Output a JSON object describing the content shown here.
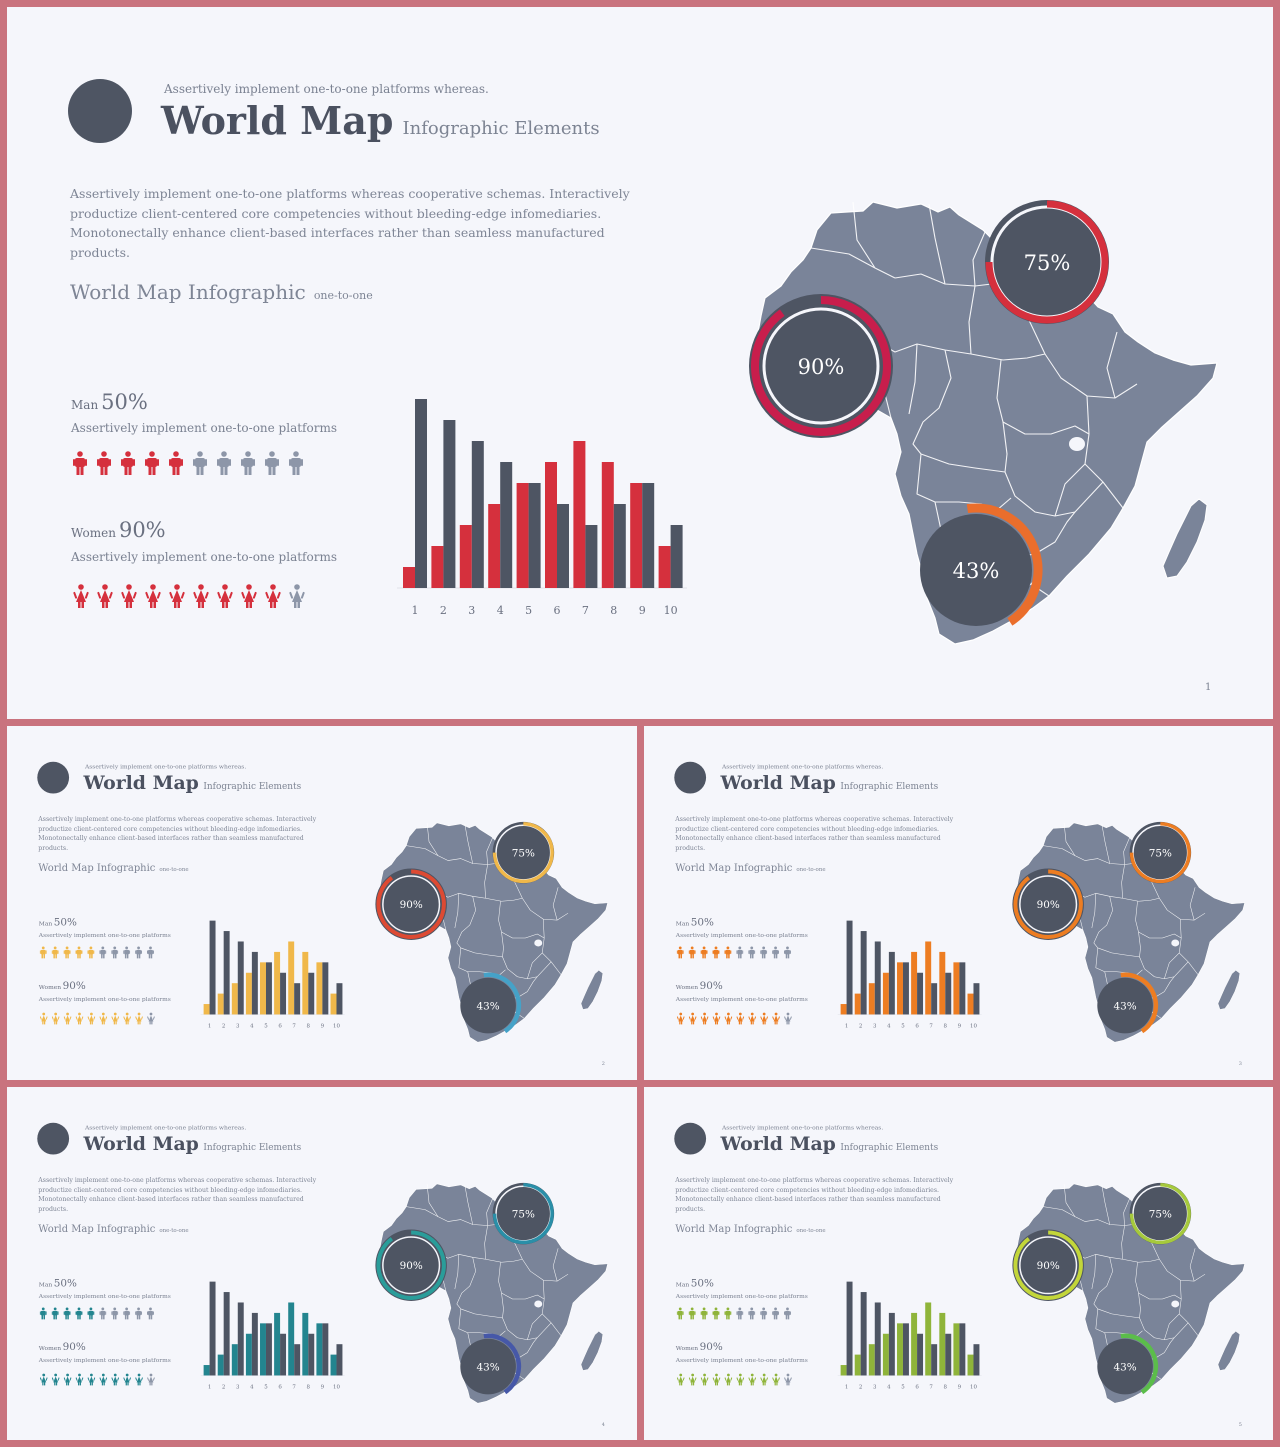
{
  "palette": {
    "dark": "#4e5563",
    "map": "#7a8499",
    "border": "#c9737e",
    "background": "#f5f6fb"
  },
  "slides": [
    {
      "accent": "#d5303d",
      "accent_alt": "#c81e4c",
      "ring_75": "#d5303d",
      "ring_90": "#c81e4c",
      "ring_43": "#ea6e2c",
      "kicker": "Assertively implement one-to-one platforms whereas.",
      "title": "World Map",
      "title_sub": "Infographic Elements",
      "body": "Assertively implement one-to-one platforms whereas cooperative schemas. Interactively productize client-centered core competencies without bleeding-edge infomediaries. Monotonectally enhance client-based interfaces rather than seamless manufactured products.",
      "section_title": "World Map Infographic",
      "section_sub": "one-to-one",
      "man_label": "Man",
      "man_value": "50%",
      "man_desc": "Assertively implement one-to-one platforms",
      "women_label": "Women",
      "women_value": "90%",
      "women_desc": "Assertively implement one-to-one platforms",
      "ring_labels": [
        "75%",
        "90%",
        "43%"
      ],
      "page": "1"
    },
    {
      "accent": "#f0b84a",
      "accent_alt": "#f0b84a",
      "ring_75": "#f0b84a",
      "ring_90": "#dd4a33",
      "ring_43": "#45a2c8",
      "kicker": "Assertively implement one-to-one platforms whereas.",
      "title": "World Map",
      "title_sub": "Infographic Elements",
      "body": "Assertively implement one-to-one platforms whereas cooperative schemas. Interactively productize client-centered core competencies without bleeding-edge infomediaries. Monotonectally enhance client-based interfaces rather than seamless manufactured products.",
      "section_title": "World Map Infographic",
      "section_sub": "one-to-one",
      "man_label": "Man",
      "man_value": "50%",
      "man_desc": "Assertively implement one-to-one platforms",
      "women_label": "Women",
      "women_value": "90%",
      "women_desc": "Assertively implement one-to-one platforms",
      "ring_labels": [
        "75%",
        "90%",
        "43%"
      ],
      "page": "2"
    },
    {
      "accent": "#ed7d22",
      "accent_alt": "#ed7d22",
      "ring_75": "#ed7d22",
      "ring_90": "#ed7d22",
      "ring_43": "#ed7d22",
      "kicker": "Assertively implement one-to-one platforms whereas.",
      "title": "World Map",
      "title_sub": "Infographic Elements",
      "body": "Assertively implement one-to-one platforms whereas cooperative schemas. Interactively productize client-centered core competencies without bleeding-edge infomediaries. Monotonectally enhance client-based interfaces rather than seamless manufactured products.",
      "section_title": "World Map Infographic",
      "section_sub": "one-to-one",
      "man_label": "Man",
      "man_value": "50%",
      "man_desc": "Assertively implement one-to-one platforms",
      "women_label": "Women",
      "women_value": "90%",
      "women_desc": "Assertively implement one-to-one platforms",
      "ring_labels": [
        "75%",
        "90%",
        "43%"
      ],
      "page": "3"
    },
    {
      "accent": "#23858f",
      "accent_alt": "#2a9d9a",
      "ring_75": "#2a8fa8",
      "ring_90": "#2a9d9a",
      "ring_43": "#4658a8",
      "kicker": "Assertively implement one-to-one platforms whereas.",
      "title": "World Map",
      "title_sub": "Infographic Elements",
      "body": "Assertively implement one-to-one platforms whereas cooperative schemas. Interactively productize client-centered core competencies without bleeding-edge infomediaries. Monotonectally enhance client-based interfaces rather than seamless manufactured products.",
      "section_title": "World Map Infographic",
      "section_sub": "one-to-one",
      "man_label": "Man",
      "man_value": "50%",
      "man_desc": "Assertively implement one-to-one platforms",
      "women_label": "Women",
      "women_value": "90%",
      "women_desc": "Assertively implement one-to-one platforms",
      "ring_labels": [
        "75%",
        "90%",
        "43%"
      ],
      "page": "4"
    },
    {
      "accent": "#8fb43a",
      "accent_alt": "#a6c93c",
      "ring_75": "#a6c93c",
      "ring_90": "#c3d63a",
      "ring_43": "#5bbd4a",
      "kicker": "Assertively implement one-to-one platforms whereas.",
      "title": "World Map",
      "title_sub": "Infographic Elements",
      "body": "Assertively implement one-to-one platforms whereas cooperative schemas. Interactively productize client-centered core competencies without bleeding-edge infomediaries. Monotonectally enhance client-based interfaces rather than seamless manufactured products.",
      "section_title": "World Map Infographic",
      "section_sub": "one-to-one",
      "man_label": "Man",
      "man_value": "50%",
      "man_desc": "Assertively implement one-to-one platforms",
      "women_label": "Women",
      "women_value": "90%",
      "women_desc": "Assertively implement one-to-one platforms",
      "ring_labels": [
        "75%",
        "90%",
        "43%"
      ],
      "page": "5"
    }
  ],
  "chart_data": [
    {
      "type": "bar",
      "categories": [
        "1",
        "2",
        "3",
        "4",
        "5",
        "6",
        "7",
        "8",
        "9",
        "10"
      ],
      "series": [
        {
          "values": [
            9,
            8,
            7,
            6,
            5,
            4,
            3,
            4,
            5,
            3
          ]
        },
        {
          "values": [
            1,
            2,
            3,
            4,
            5,
            6,
            7,
            6,
            5,
            2
          ]
        }
      ],
      "ylim": [
        0,
        9
      ]
    },
    {
      "type": "donut",
      "values": [
        75,
        90,
        43
      ],
      "labels": [
        "75%",
        "90%",
        "43%"
      ]
    },
    {
      "type": "pictogram",
      "series": [
        {
          "label": "Man",
          "value": 50,
          "icons": 10,
          "filled": 5
        },
        {
          "label": "Women",
          "value": 90,
          "icons": 10,
          "filled": 9
        }
      ]
    }
  ]
}
